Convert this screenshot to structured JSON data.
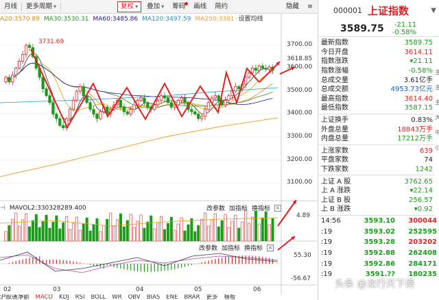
{
  "toolbar": {
    "left": [
      "月线",
      "更多周期"
    ],
    "buttons": [
      "复权",
      "叠加",
      "筹码",
      "画线",
      "简约",
      "隐藏"
    ],
    "icons": [
      "menu-icon",
      "close-icon"
    ]
  },
  "ma_legend": [
    {
      "label": "A20:3570.89",
      "color": "#e08a00"
    },
    {
      "label": "MA30:3530.31",
      "color": "#2e8b2e"
    },
    {
      "label": "MA60:3485.86",
      "color": "#1a1a8c"
    },
    {
      "label": "MA120:3497.59",
      "color": "#1e90c8"
    },
    {
      "label": "MA250:3381",
      "color": "#f0a030"
    },
    {
      "label": "设置均线",
      "color": "#333333"
    }
  ],
  "price_axis": [
    "3700.00",
    "3600.00",
    "3500.00",
    "3400.00",
    "3300.00",
    "3200.00",
    "3100.00"
  ],
  "current_price_tag": "3618.85",
  "high_marker": "3731.69",
  "vol_panel": {
    "label": "MAVOL2:330328289.400",
    "axis_top": "4.89",
    "controls": [
      "改参数",
      "加指标",
      "换指标"
    ]
  },
  "macd_panel": {
    "controls": [
      "改参数",
      "加指标",
      "换指标"
    ],
    "axis_top": "55.30",
    "axis_bottom": "-56.67"
  },
  "dates": [
    "02",
    "03",
    "04",
    "05",
    "06"
  ],
  "indicator_tabs": [
    "沪股通净额",
    "MACD",
    "KDJ",
    "RSI",
    "BOLL",
    "WR",
    "OBV",
    "BIAS",
    "ENE",
    "BRAR",
    "更多",
    "模板"
  ],
  "info": {
    "code": "000001",
    "name": "上证指数",
    "price": "3589.75",
    "change": "-21.11",
    "change_pct": "-0.58%",
    "group1": [
      {
        "label": "最新指数",
        "value": "3589.75",
        "cls": "green"
      },
      {
        "label": "今日开盘",
        "value": "3614.11",
        "cls": "red"
      },
      {
        "label": "指数涨跌",
        "value": "▾21.11",
        "cls": "green"
      },
      {
        "label": "指数涨幅",
        "value": "-0.58%",
        "cls": "green"
      },
      {
        "label": "总成交量",
        "value": "3.61亿手",
        "cls": ""
      },
      {
        "label": "总成交额",
        "value": "4953.73亿元",
        "cls": "blue"
      },
      {
        "label": "最高指数",
        "value": "3614.40",
        "cls": "red"
      },
      {
        "label": "最低指数",
        "value": "3587.15",
        "cls": "green"
      }
    ],
    "group2": [
      {
        "label": "上证换手",
        "value": "0.83%",
        "cls": ""
      },
      {
        "label": "外盘总量",
        "value": "18843万手",
        "cls": "red"
      },
      {
        "label": "内盘总量",
        "value": "17212万手",
        "cls": "green"
      }
    ],
    "group3": [
      {
        "label": "上涨家数",
        "value": "639",
        "cls": "red"
      },
      {
        "label": "平盘家数",
        "value": "74",
        "cls": ""
      },
      {
        "label": "下跌家数",
        "value": "1242",
        "cls": "green"
      }
    ],
    "group4": [
      {
        "label": "上证 A 股",
        "value": "3762.65",
        "cls": "green"
      },
      {
        "label": "上 A 涨跌",
        "value": "▾22.14",
        "cls": "green"
      },
      {
        "label": "上证 B 股",
        "value": "256.57",
        "cls": "green"
      },
      {
        "label": "上 B 涨跌",
        "value": "▾0.92",
        "cls": "green"
      }
    ],
    "ticks": [
      {
        "t": "14:56",
        "p": "3593.10",
        "v": "300044",
        "vc": "red"
      },
      {
        "t": ":19",
        "p": "3593.02",
        "v": "252595",
        "vc": "green"
      },
      {
        "t": ":19",
        "p": "3593.28",
        "v": "203202",
        "vc": "red"
      },
      {
        "t": ":19",
        "p": "3592.88",
        "v": "262408",
        "vc": "green"
      },
      {
        "t": ":19",
        "p": "3592.86",
        "v": "284171",
        "vc": "green"
      },
      {
        "t": ":19",
        "p": "3591.??",
        "v": "180235",
        "vc": "green"
      }
    ],
    "side_chars": [
      "主",
      "主",
      "主",
      "大",
      "中",
      "小"
    ]
  },
  "watermark": "头条 @龙行天下傍",
  "colors": {
    "up": "#e02020",
    "down": "#1a9b1a",
    "annotation": "#e02020"
  }
}
